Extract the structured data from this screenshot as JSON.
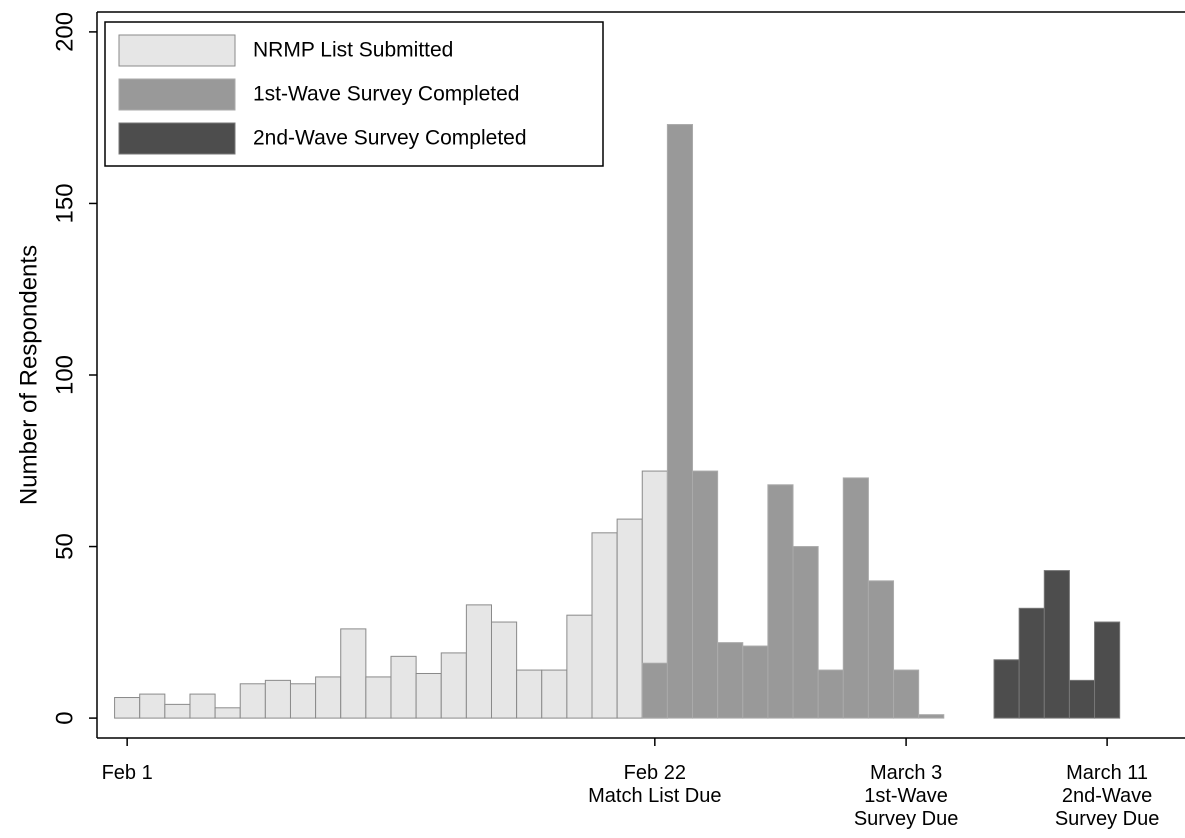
{
  "chart_data": {
    "type": "bar",
    "y_label": "Number of Respondents",
    "x": [
      0,
      1,
      2,
      3,
      4,
      5,
      6,
      7,
      8,
      9,
      10,
      11,
      12,
      13,
      14,
      15,
      16,
      17,
      18,
      19,
      20,
      21,
      22,
      23,
      24,
      25,
      26,
      27,
      28,
      29,
      30,
      31,
      32,
      33,
      34,
      35,
      36,
      37,
      38,
      39
    ],
    "xlim": [
      -1.2,
      42.1
    ],
    "xticks": [
      {
        "value": 0,
        "label": "Feb 1"
      },
      {
        "value": 21,
        "label": "Feb 22\nMatch List Due"
      },
      {
        "value": 31,
        "label": "March 3\n1st-Wave\nSurvey Due"
      },
      {
        "value": 39,
        "label": "March 11\n2nd-Wave\nSurvey Due"
      }
    ],
    "ylim": [
      -5.8,
      205.8
    ],
    "yticks": [
      0,
      50,
      100,
      150,
      200
    ],
    "legend": "upper left",
    "series": [
      {
        "name": "NRMP List Submitted",
        "color": "#e6e6e6",
        "values": [
          6,
          7,
          4,
          7,
          3,
          10,
          11,
          10,
          12,
          26,
          12,
          18,
          13,
          19,
          33,
          28,
          14,
          14,
          30,
          54,
          58,
          72,
          null,
          null,
          null,
          null,
          null,
          null,
          null,
          null,
          null,
          null,
          null,
          null,
          null,
          null,
          null,
          null,
          null,
          null
        ]
      },
      {
        "name": "1st-Wave Survey Completed",
        "color": "#999999",
        "values": [
          null,
          null,
          null,
          null,
          null,
          null,
          null,
          null,
          null,
          null,
          null,
          null,
          null,
          null,
          null,
          null,
          null,
          null,
          null,
          null,
          null,
          16,
          173,
          72,
          22,
          21,
          68,
          50,
          14,
          70,
          40,
          14,
          1,
          null,
          null,
          null,
          null,
          null,
          null,
          null
        ]
      },
      {
        "name": "2nd-Wave Survey Completed",
        "color": "#4d4d4d",
        "values": [
          null,
          null,
          null,
          null,
          null,
          null,
          null,
          null,
          null,
          null,
          null,
          null,
          null,
          null,
          null,
          null,
          null,
          null,
          null,
          null,
          null,
          null,
          null,
          null,
          null,
          null,
          null,
          null,
          null,
          null,
          null,
          null,
          null,
          null,
          null,
          17,
          32,
          43,
          11,
          28
        ]
      }
    ]
  }
}
